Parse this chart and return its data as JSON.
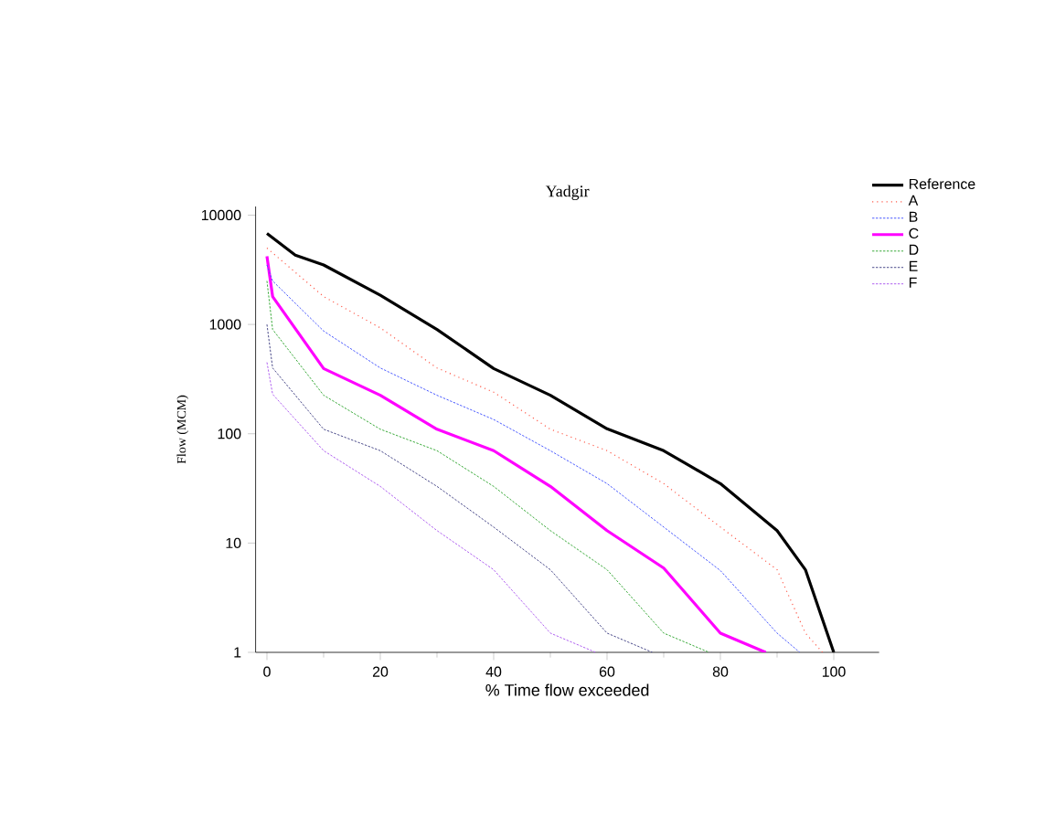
{
  "chart_data": {
    "type": "line",
    "title": "Yadgir",
    "xlabel": "% Time flow exceeded",
    "ylabel": "Flow (MCM)",
    "log": "y",
    "xlim": [
      -2,
      108
    ],
    "xticks": [
      0,
      20,
      40,
      60,
      80,
      100
    ],
    "ylim": [
      1,
      12000
    ],
    "yticks": [
      1,
      10,
      100,
      1000,
      10000
    ],
    "legend": "top right",
    "series": [
      {
        "name": "Reference",
        "color": "#000000",
        "line_style": "solid",
        "x": [
          0,
          5,
          10,
          20,
          30,
          40,
          50,
          60,
          70,
          80,
          90,
          95,
          100
        ],
        "values": [
          6800,
          4300,
          3500,
          1850,
          900,
          395,
          225,
          111,
          70,
          35,
          13,
          5.7,
          1
        ]
      },
      {
        "name": "A",
        "color": "#ff5a4a",
        "line_style": "dotted",
        "x": [
          0,
          5,
          10,
          20,
          30,
          40,
          50,
          60,
          70,
          80,
          90,
          95,
          98
        ],
        "values": [
          5000,
          3000,
          1800,
          930,
          400,
          240,
          110,
          70,
          35,
          14,
          5.7,
          1.5,
          1
        ]
      },
      {
        "name": "B",
        "color": "#4a5aff",
        "line_style": "dashed",
        "x": [
          0,
          1,
          10,
          20,
          30,
          40,
          50,
          60,
          70,
          80,
          90,
          94
        ],
        "values": [
          3500,
          2500,
          870,
          400,
          225,
          135,
          70,
          35,
          14,
          5.6,
          1.5,
          1
        ]
      },
      {
        "name": "C",
        "color": "#ff00ff",
        "line_style": "solid",
        "x": [
          0,
          1,
          10,
          20,
          30,
          40,
          50,
          60,
          70,
          80,
          88
        ],
        "values": [
          4200,
          1800,
          395,
          225,
          110,
          70,
          33,
          13,
          5.9,
          1.5,
          1
        ]
      },
      {
        "name": "D",
        "color": "#3aaa3a",
        "line_style": "dashed",
        "x": [
          0,
          1,
          10,
          20,
          30,
          40,
          50,
          60,
          70,
          78
        ],
        "values": [
          2500,
          900,
          225,
          110,
          70,
          33,
          13,
          5.7,
          1.5,
          1
        ]
      },
      {
        "name": "E",
        "color": "#4a4a8a",
        "line_style": "dashed",
        "x": [
          0,
          1,
          10,
          20,
          30,
          40,
          50,
          60,
          68
        ],
        "values": [
          1000,
          400,
          110,
          70,
          33,
          14,
          5.7,
          1.5,
          1
        ]
      },
      {
        "name": "F",
        "color": "#b060f0",
        "line_style": "dashed",
        "x": [
          0,
          1,
          10,
          20,
          30,
          40,
          50,
          58
        ],
        "values": [
          450,
          230,
          70,
          33,
          13,
          5.7,
          1.5,
          1
        ]
      }
    ]
  }
}
